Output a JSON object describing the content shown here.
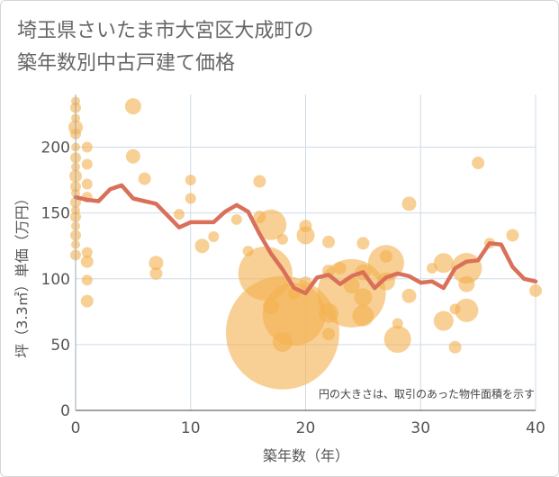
{
  "chart_data": {
    "type": "scatter",
    "title_lines": [
      "埼玉県さいたま市大宮区大成町の",
      "築年数別中古戸建て価格"
    ],
    "xlabel": "築年数（年）",
    "ylabel": "坪（3.3㎡）単価（万円）",
    "xlim": [
      0,
      40
    ],
    "ylim": [
      0,
      240
    ],
    "x_ticks": [
      "0",
      "10",
      "20",
      "30",
      "40"
    ],
    "y_ticks": [
      "0",
      "50",
      "100",
      "150",
      "200"
    ],
    "grid": true,
    "note": "円の大きさは、取引のあった物件面積を示す",
    "colors": {
      "bubble": "#f3b04f",
      "line": "#d9705a",
      "grid": "#cfdbe6"
    },
    "bubbles": [
      {
        "x": 0,
        "y": 235,
        "s": 5
      },
      {
        "x": 0,
        "y": 230,
        "s": 6
      },
      {
        "x": 0,
        "y": 222,
        "s": 5
      },
      {
        "x": 0,
        "y": 215,
        "s": 8
      },
      {
        "x": 0,
        "y": 210,
        "s": 6
      },
      {
        "x": 0,
        "y": 200,
        "s": 5
      },
      {
        "x": 0,
        "y": 192,
        "s": 6
      },
      {
        "x": 0,
        "y": 185,
        "s": 5
      },
      {
        "x": 0,
        "y": 178,
        "s": 7
      },
      {
        "x": 0,
        "y": 170,
        "s": 6
      },
      {
        "x": 0,
        "y": 165,
        "s": 5
      },
      {
        "x": 0,
        "y": 158,
        "s": 6
      },
      {
        "x": 0,
        "y": 152,
        "s": 5
      },
      {
        "x": 0,
        "y": 147,
        "s": 6
      },
      {
        "x": 0,
        "y": 140,
        "s": 5
      },
      {
        "x": 0,
        "y": 133,
        "s": 6
      },
      {
        "x": 0,
        "y": 126,
        "s": 5
      },
      {
        "x": 0,
        "y": 118,
        "s": 6
      },
      {
        "x": 1,
        "y": 200,
        "s": 6
      },
      {
        "x": 1,
        "y": 187,
        "s": 6
      },
      {
        "x": 1,
        "y": 172,
        "s": 6
      },
      {
        "x": 1,
        "y": 162,
        "s": 6
      },
      {
        "x": 1,
        "y": 120,
        "s": 6
      },
      {
        "x": 1,
        "y": 113,
        "s": 7
      },
      {
        "x": 1,
        "y": 99,
        "s": 6
      },
      {
        "x": 1,
        "y": 83,
        "s": 7
      },
      {
        "x": 5,
        "y": 231,
        "s": 9
      },
      {
        "x": 5,
        "y": 193,
        "s": 8
      },
      {
        "x": 6,
        "y": 176,
        "s": 7
      },
      {
        "x": 7,
        "y": 112,
        "s": 8
      },
      {
        "x": 7,
        "y": 104,
        "s": 7
      },
      {
        "x": 9,
        "y": 149,
        "s": 6
      },
      {
        "x": 10,
        "y": 175,
        "s": 6
      },
      {
        "x": 10,
        "y": 161,
        "s": 6
      },
      {
        "x": 11,
        "y": 125,
        "s": 8
      },
      {
        "x": 12,
        "y": 132,
        "s": 6
      },
      {
        "x": 14,
        "y": 145,
        "s": 6
      },
      {
        "x": 15,
        "y": 121,
        "s": 6
      },
      {
        "x": 16,
        "y": 174,
        "s": 7
      },
      {
        "x": 16,
        "y": 147,
        "s": 7
      },
      {
        "x": 16.5,
        "y": 104,
        "s": 30
      },
      {
        "x": 17,
        "y": 141,
        "s": 17
      },
      {
        "x": 17,
        "y": 79,
        "s": 9
      },
      {
        "x": 18,
        "y": 130,
        "s": 6
      },
      {
        "x": 18,
        "y": 59,
        "s": 63
      },
      {
        "x": 18,
        "y": 52,
        "s": 11
      },
      {
        "x": 19,
        "y": 73,
        "s": 35
      },
      {
        "x": 19,
        "y": 89,
        "s": 7
      },
      {
        "x": 20,
        "y": 140,
        "s": 7
      },
      {
        "x": 20,
        "y": 133,
        "s": 10
      },
      {
        "x": 20,
        "y": 97,
        "s": 7
      },
      {
        "x": 22,
        "y": 128,
        "s": 7
      },
      {
        "x": 22,
        "y": 106,
        "s": 7
      },
      {
        "x": 22,
        "y": 74,
        "s": 11
      },
      {
        "x": 22,
        "y": 58,
        "s": 7
      },
      {
        "x": 23,
        "y": 108,
        "s": 7
      },
      {
        "x": 24,
        "y": 89,
        "s": 38
      },
      {
        "x": 24,
        "y": 95,
        "s": 9
      },
      {
        "x": 25,
        "y": 127,
        "s": 7
      },
      {
        "x": 25,
        "y": 105,
        "s": 9
      },
      {
        "x": 25,
        "y": 86,
        "s": 10
      },
      {
        "x": 25,
        "y": 72,
        "s": 12
      },
      {
        "x": 27,
        "y": 117,
        "s": 7
      },
      {
        "x": 27,
        "y": 112,
        "s": 20
      },
      {
        "x": 27,
        "y": 98,
        "s": 10
      },
      {
        "x": 28,
        "y": 66,
        "s": 6
      },
      {
        "x": 28,
        "y": 54,
        "s": 15
      },
      {
        "x": 29,
        "y": 157,
        "s": 8
      },
      {
        "x": 29,
        "y": 87,
        "s": 8
      },
      {
        "x": 31,
        "y": 108,
        "s": 6
      },
      {
        "x": 32,
        "y": 112,
        "s": 11
      },
      {
        "x": 32,
        "y": 68,
        "s": 11
      },
      {
        "x": 33,
        "y": 77,
        "s": 6
      },
      {
        "x": 33,
        "y": 48,
        "s": 7
      },
      {
        "x": 34,
        "y": 108,
        "s": 17
      },
      {
        "x": 34,
        "y": 96,
        "s": 9
      },
      {
        "x": 34,
        "y": 76,
        "s": 13
      },
      {
        "x": 35,
        "y": 188,
        "s": 7
      },
      {
        "x": 36,
        "y": 127,
        "s": 6
      },
      {
        "x": 38,
        "y": 133,
        "s": 7
      },
      {
        "x": 40,
        "y": 91,
        "s": 7
      }
    ],
    "line": {
      "x": [
        0,
        1,
        2,
        3,
        4,
        5,
        6,
        7,
        8,
        9,
        10,
        11,
        12,
        13,
        14,
        15,
        16,
        17,
        18,
        19,
        20,
        21,
        22,
        23,
        24,
        25,
        26,
        27,
        28,
        29,
        30,
        31,
        32,
        33,
        34,
        35,
        36,
        37,
        38,
        39,
        40
      ],
      "y": [
        162,
        160,
        159,
        168,
        171,
        161,
        159,
        157,
        148,
        139,
        143,
        143,
        143,
        151,
        156,
        151,
        134,
        119,
        107,
        93,
        89,
        101,
        103,
        96,
        102,
        105,
        93,
        101,
        104,
        102,
        97,
        98,
        93,
        108,
        113,
        114,
        127,
        126,
        109,
        100,
        98
      ]
    }
  }
}
